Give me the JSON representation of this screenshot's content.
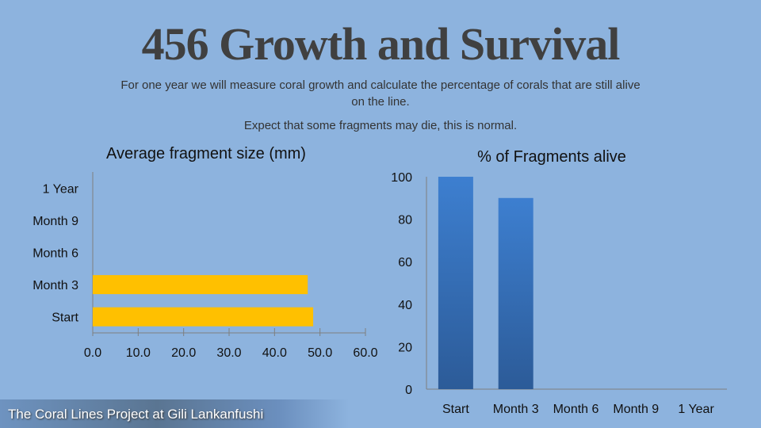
{
  "title": "456 Growth and Survival",
  "subtitle_line1": "For one year we will measure coral growth and calculate the percentage of corals that are still alive on the line.",
  "subtitle_line2": "Expect that some fragments may die, this is normal.",
  "footer": "The Coral Lines Project at Gili Lankanfushi",
  "chart_data": [
    {
      "type": "bar",
      "orientation": "horizontal",
      "title": "Average fragment size (mm)",
      "categories": [
        "Start",
        "Month 3",
        "Month 6",
        "Month 9",
        "1 Year"
      ],
      "values": [
        48.5,
        47.3,
        null,
        null,
        null
      ],
      "xlim": [
        0,
        60
      ],
      "xticks": [
        "0.0",
        "10.0",
        "20.0",
        "30.0",
        "40.0",
        "50.0",
        "60.0"
      ],
      "color": "#ffc000",
      "grid": false
    },
    {
      "type": "bar",
      "orientation": "vertical",
      "title": "% of Fragments alive",
      "categories": [
        "Start",
        "Month 3",
        "Month 6",
        "Month 9",
        "1 Year"
      ],
      "values": [
        100,
        90,
        null,
        null,
        null
      ],
      "ylim": [
        0,
        100
      ],
      "yticks": [
        "0",
        "20",
        "40",
        "60",
        "80",
        "100"
      ],
      "color": "#3a7bcb",
      "grid": false
    }
  ]
}
